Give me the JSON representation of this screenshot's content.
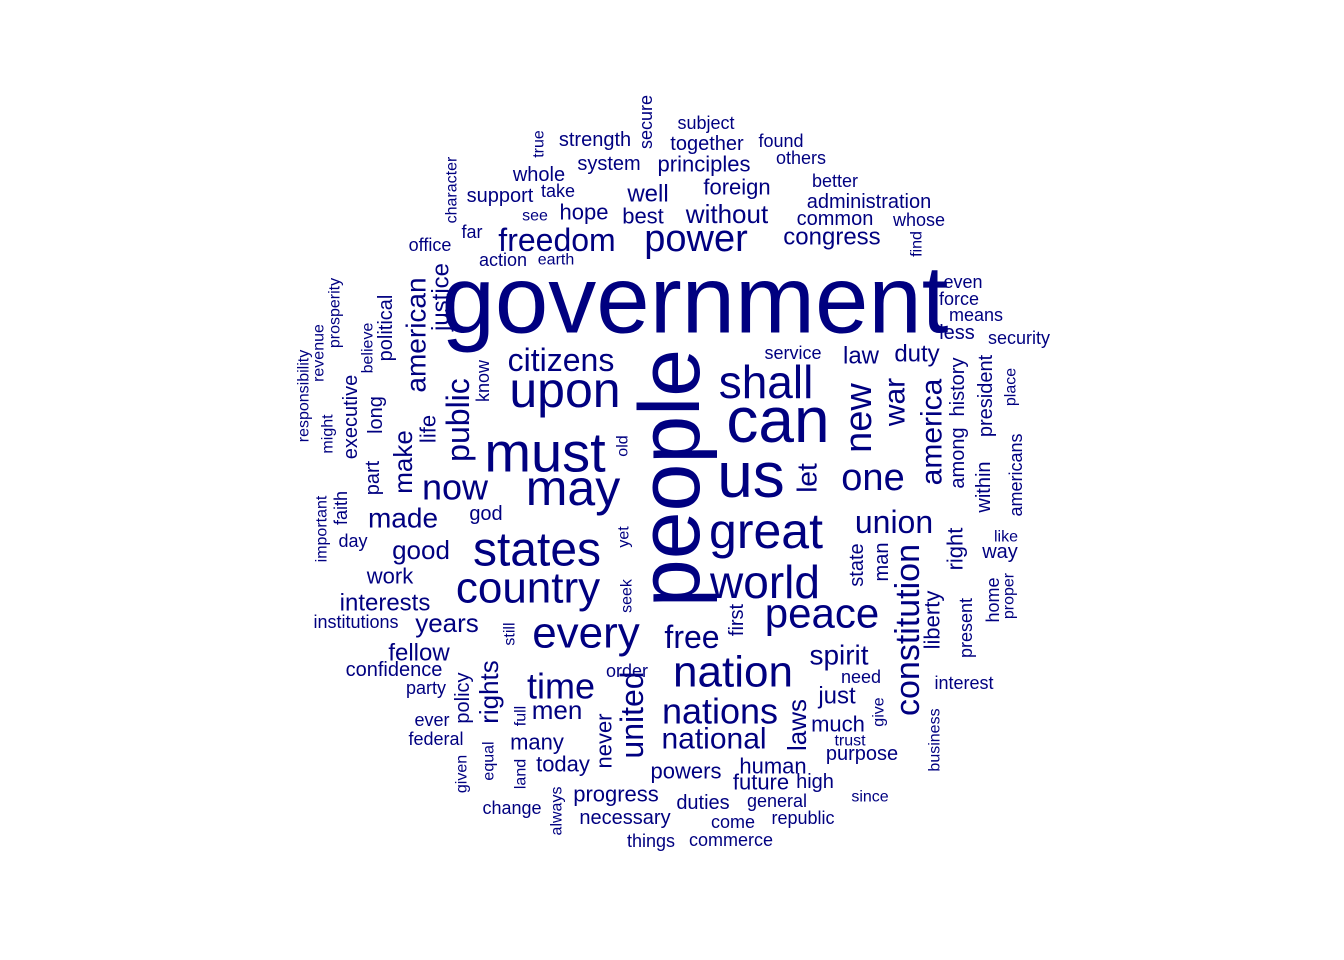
{
  "word_color": "#000080",
  "background_color": "#ffffff",
  "words": [
    {
      "text": "government"
    },
    {
      "text": "people"
    },
    {
      "text": "can"
    },
    {
      "text": "us"
    },
    {
      "text": "must"
    },
    {
      "text": "upon"
    },
    {
      "text": "may"
    },
    {
      "text": "shall"
    },
    {
      "text": "great"
    },
    {
      "text": "world"
    },
    {
      "text": "states"
    },
    {
      "text": "country"
    },
    {
      "text": "every"
    },
    {
      "text": "nation"
    },
    {
      "text": "peace"
    },
    {
      "text": "new"
    },
    {
      "text": "power"
    },
    {
      "text": "freedom"
    },
    {
      "text": "citizens"
    },
    {
      "text": "one"
    },
    {
      "text": "union"
    },
    {
      "text": "constitution"
    },
    {
      "text": "america"
    },
    {
      "text": "war"
    },
    {
      "text": "public"
    },
    {
      "text": "american"
    },
    {
      "text": "now"
    },
    {
      "text": "time"
    },
    {
      "text": "nations"
    },
    {
      "text": "united"
    },
    {
      "text": "national"
    },
    {
      "text": "free"
    },
    {
      "text": "spirit"
    },
    {
      "text": "made"
    },
    {
      "text": "good"
    },
    {
      "text": "years"
    },
    {
      "text": "interests"
    },
    {
      "text": "men"
    },
    {
      "text": "rights"
    },
    {
      "text": "laws"
    },
    {
      "text": "let"
    },
    {
      "text": "law"
    },
    {
      "text": "duty"
    },
    {
      "text": "justice"
    },
    {
      "text": "life"
    },
    {
      "text": "make"
    },
    {
      "text": "well"
    },
    {
      "text": "without"
    },
    {
      "text": "foreign"
    },
    {
      "text": "congress"
    },
    {
      "text": "right"
    },
    {
      "text": "liberty"
    },
    {
      "text": "fellow"
    },
    {
      "text": "work"
    },
    {
      "text": "never"
    },
    {
      "text": "just"
    },
    {
      "text": "many"
    },
    {
      "text": "much"
    },
    {
      "text": "human"
    },
    {
      "text": "powers"
    },
    {
      "text": "progress"
    },
    {
      "text": "future"
    },
    {
      "text": "duties"
    },
    {
      "text": "today"
    },
    {
      "text": "principles"
    },
    {
      "text": "system"
    },
    {
      "text": "strength"
    },
    {
      "text": "together"
    },
    {
      "text": "support"
    },
    {
      "text": "whole"
    },
    {
      "text": "hope"
    },
    {
      "text": "best"
    },
    {
      "text": "administration"
    },
    {
      "text": "common"
    },
    {
      "text": "political"
    },
    {
      "text": "long"
    },
    {
      "text": "part"
    },
    {
      "text": "executive"
    },
    {
      "text": "among"
    },
    {
      "text": "history"
    },
    {
      "text": "president"
    },
    {
      "text": "state"
    },
    {
      "text": "man"
    },
    {
      "text": "policy"
    },
    {
      "text": "confidence"
    },
    {
      "text": "first"
    },
    {
      "text": "necessary"
    },
    {
      "text": "purpose"
    },
    {
      "text": "general"
    },
    {
      "text": "high"
    },
    {
      "text": "within"
    },
    {
      "text": "americans"
    },
    {
      "text": "present"
    },
    {
      "text": "home"
    },
    {
      "text": "way"
    },
    {
      "text": "service"
    },
    {
      "text": "security"
    },
    {
      "text": "means"
    },
    {
      "text": "force"
    },
    {
      "text": "less"
    },
    {
      "text": "even"
    },
    {
      "text": "better"
    },
    {
      "text": "others"
    },
    {
      "text": "found"
    },
    {
      "text": "subject"
    },
    {
      "text": "secure"
    },
    {
      "text": "true"
    },
    {
      "text": "character"
    },
    {
      "text": "take"
    },
    {
      "text": "see"
    },
    {
      "text": "far"
    },
    {
      "text": "office"
    },
    {
      "text": "action"
    },
    {
      "text": "earth"
    },
    {
      "text": "whose"
    },
    {
      "text": "find"
    },
    {
      "text": "prosperity"
    },
    {
      "text": "revenue"
    },
    {
      "text": "responsibility"
    },
    {
      "text": "might"
    },
    {
      "text": "believe"
    },
    {
      "text": "know"
    },
    {
      "text": "old"
    },
    {
      "text": "god"
    },
    {
      "text": "yet"
    },
    {
      "text": "faith"
    },
    {
      "text": "important"
    },
    {
      "text": "day"
    },
    {
      "text": "institutions"
    },
    {
      "text": "seek"
    },
    {
      "text": "still"
    },
    {
      "text": "order"
    },
    {
      "text": "party"
    },
    {
      "text": "ever"
    },
    {
      "text": "federal"
    },
    {
      "text": "equal"
    },
    {
      "text": "given"
    },
    {
      "text": "full"
    },
    {
      "text": "land"
    },
    {
      "text": "always"
    },
    {
      "text": "change"
    },
    {
      "text": "things"
    },
    {
      "text": "commerce"
    },
    {
      "text": "come"
    },
    {
      "text": "republic"
    },
    {
      "text": "since"
    },
    {
      "text": "trust"
    },
    {
      "text": "give"
    },
    {
      "text": "need"
    },
    {
      "text": "interest"
    },
    {
      "text": "business"
    },
    {
      "text": "like"
    },
    {
      "text": "proper"
    },
    {
      "text": "place"
    }
  ]
}
